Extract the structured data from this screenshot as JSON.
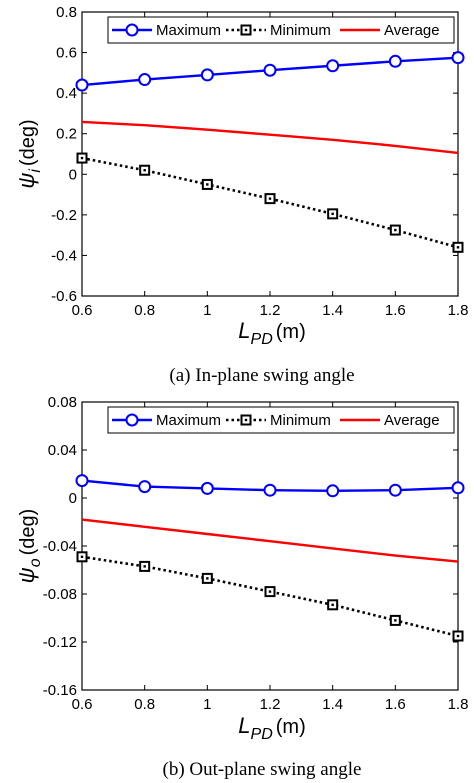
{
  "chart_data": [
    {
      "type": "line",
      "panel": "top",
      "caption": "(a) In-plane swing angle",
      "xlabel": {
        "main": "L",
        "sub": "PD",
        "unit": "(m)"
      },
      "ylabel": {
        "main": "ψ",
        "sub": "i",
        "unit": "(deg)"
      },
      "xlim": [
        0.6,
        1.8
      ],
      "ylim": [
        -0.6,
        0.8
      ],
      "xticks": [
        "0.6",
        "0.8",
        "1",
        "1.2",
        "1.4",
        "1.6",
        "1.8"
      ],
      "yticks": [
        "-0.6",
        "-0.4",
        "-0.2",
        "0",
        "0.2",
        "0.4",
        "0.6",
        "0.8"
      ],
      "grid": false,
      "legend_position": "top",
      "series": [
        {
          "name": "Maximum",
          "color": "#0000ff",
          "style": "solid",
          "marker": "circle",
          "x": [
            0.6,
            0.8,
            1.0,
            1.2,
            1.4,
            1.6,
            1.8
          ],
          "y": [
            0.44,
            0.467,
            0.49,
            0.513,
            0.535,
            0.557,
            0.575
          ]
        },
        {
          "name": "Minimum",
          "color": "#000000",
          "style": "dotted",
          "marker": "square",
          "x": [
            0.6,
            0.8,
            1.0,
            1.2,
            1.4,
            1.6,
            1.8
          ],
          "y": [
            0.08,
            0.02,
            -0.05,
            -0.12,
            -0.195,
            -0.275,
            -0.36
          ]
        },
        {
          "name": "Average",
          "color": "#ff0000",
          "style": "solid",
          "marker": "none",
          "x": [
            0.6,
            0.8,
            1.0,
            1.2,
            1.4,
            1.6,
            1.8
          ],
          "y": [
            0.258,
            0.242,
            0.22,
            0.195,
            0.17,
            0.14,
            0.105
          ]
        }
      ]
    },
    {
      "type": "line",
      "panel": "bottom",
      "caption": "(b) Out-plane swing angle",
      "xlabel": {
        "main": "L",
        "sub": "PD",
        "unit": "(m)"
      },
      "ylabel": {
        "main": "ψ",
        "sub": "o",
        "unit": "(deg)"
      },
      "xlim": [
        0.6,
        1.8
      ],
      "ylim": [
        -0.16,
        0.08
      ],
      "xticks": [
        "0.6",
        "0.8",
        "1",
        "1.2",
        "1.4",
        "1.6",
        "1.8"
      ],
      "yticks": [
        "-0.16",
        "-0.12",
        "-0.08",
        "-0.04",
        "0",
        "0.04",
        "0.08"
      ],
      "grid": false,
      "legend_position": "top",
      "series": [
        {
          "name": "Maximum",
          "color": "#0000ff",
          "style": "solid",
          "marker": "circle",
          "x": [
            0.6,
            0.8,
            1.0,
            1.2,
            1.4,
            1.6,
            1.8
          ],
          "y": [
            0.0145,
            0.0095,
            0.008,
            0.0065,
            0.006,
            0.0065,
            0.0085
          ]
        },
        {
          "name": "Minimum",
          "color": "#000000",
          "style": "dotted",
          "marker": "square",
          "x": [
            0.6,
            0.8,
            1.0,
            1.2,
            1.4,
            1.6,
            1.8
          ],
          "y": [
            -0.049,
            -0.057,
            -0.067,
            -0.078,
            -0.089,
            -0.102,
            -0.115
          ]
        },
        {
          "name": "Average",
          "color": "#ff0000",
          "style": "solid",
          "marker": "none",
          "x": [
            0.6,
            0.8,
            1.0,
            1.2,
            1.4,
            1.6,
            1.8
          ],
          "y": [
            -0.018,
            -0.024,
            -0.03,
            -0.036,
            -0.042,
            -0.048,
            -0.053
          ]
        }
      ]
    }
  ]
}
